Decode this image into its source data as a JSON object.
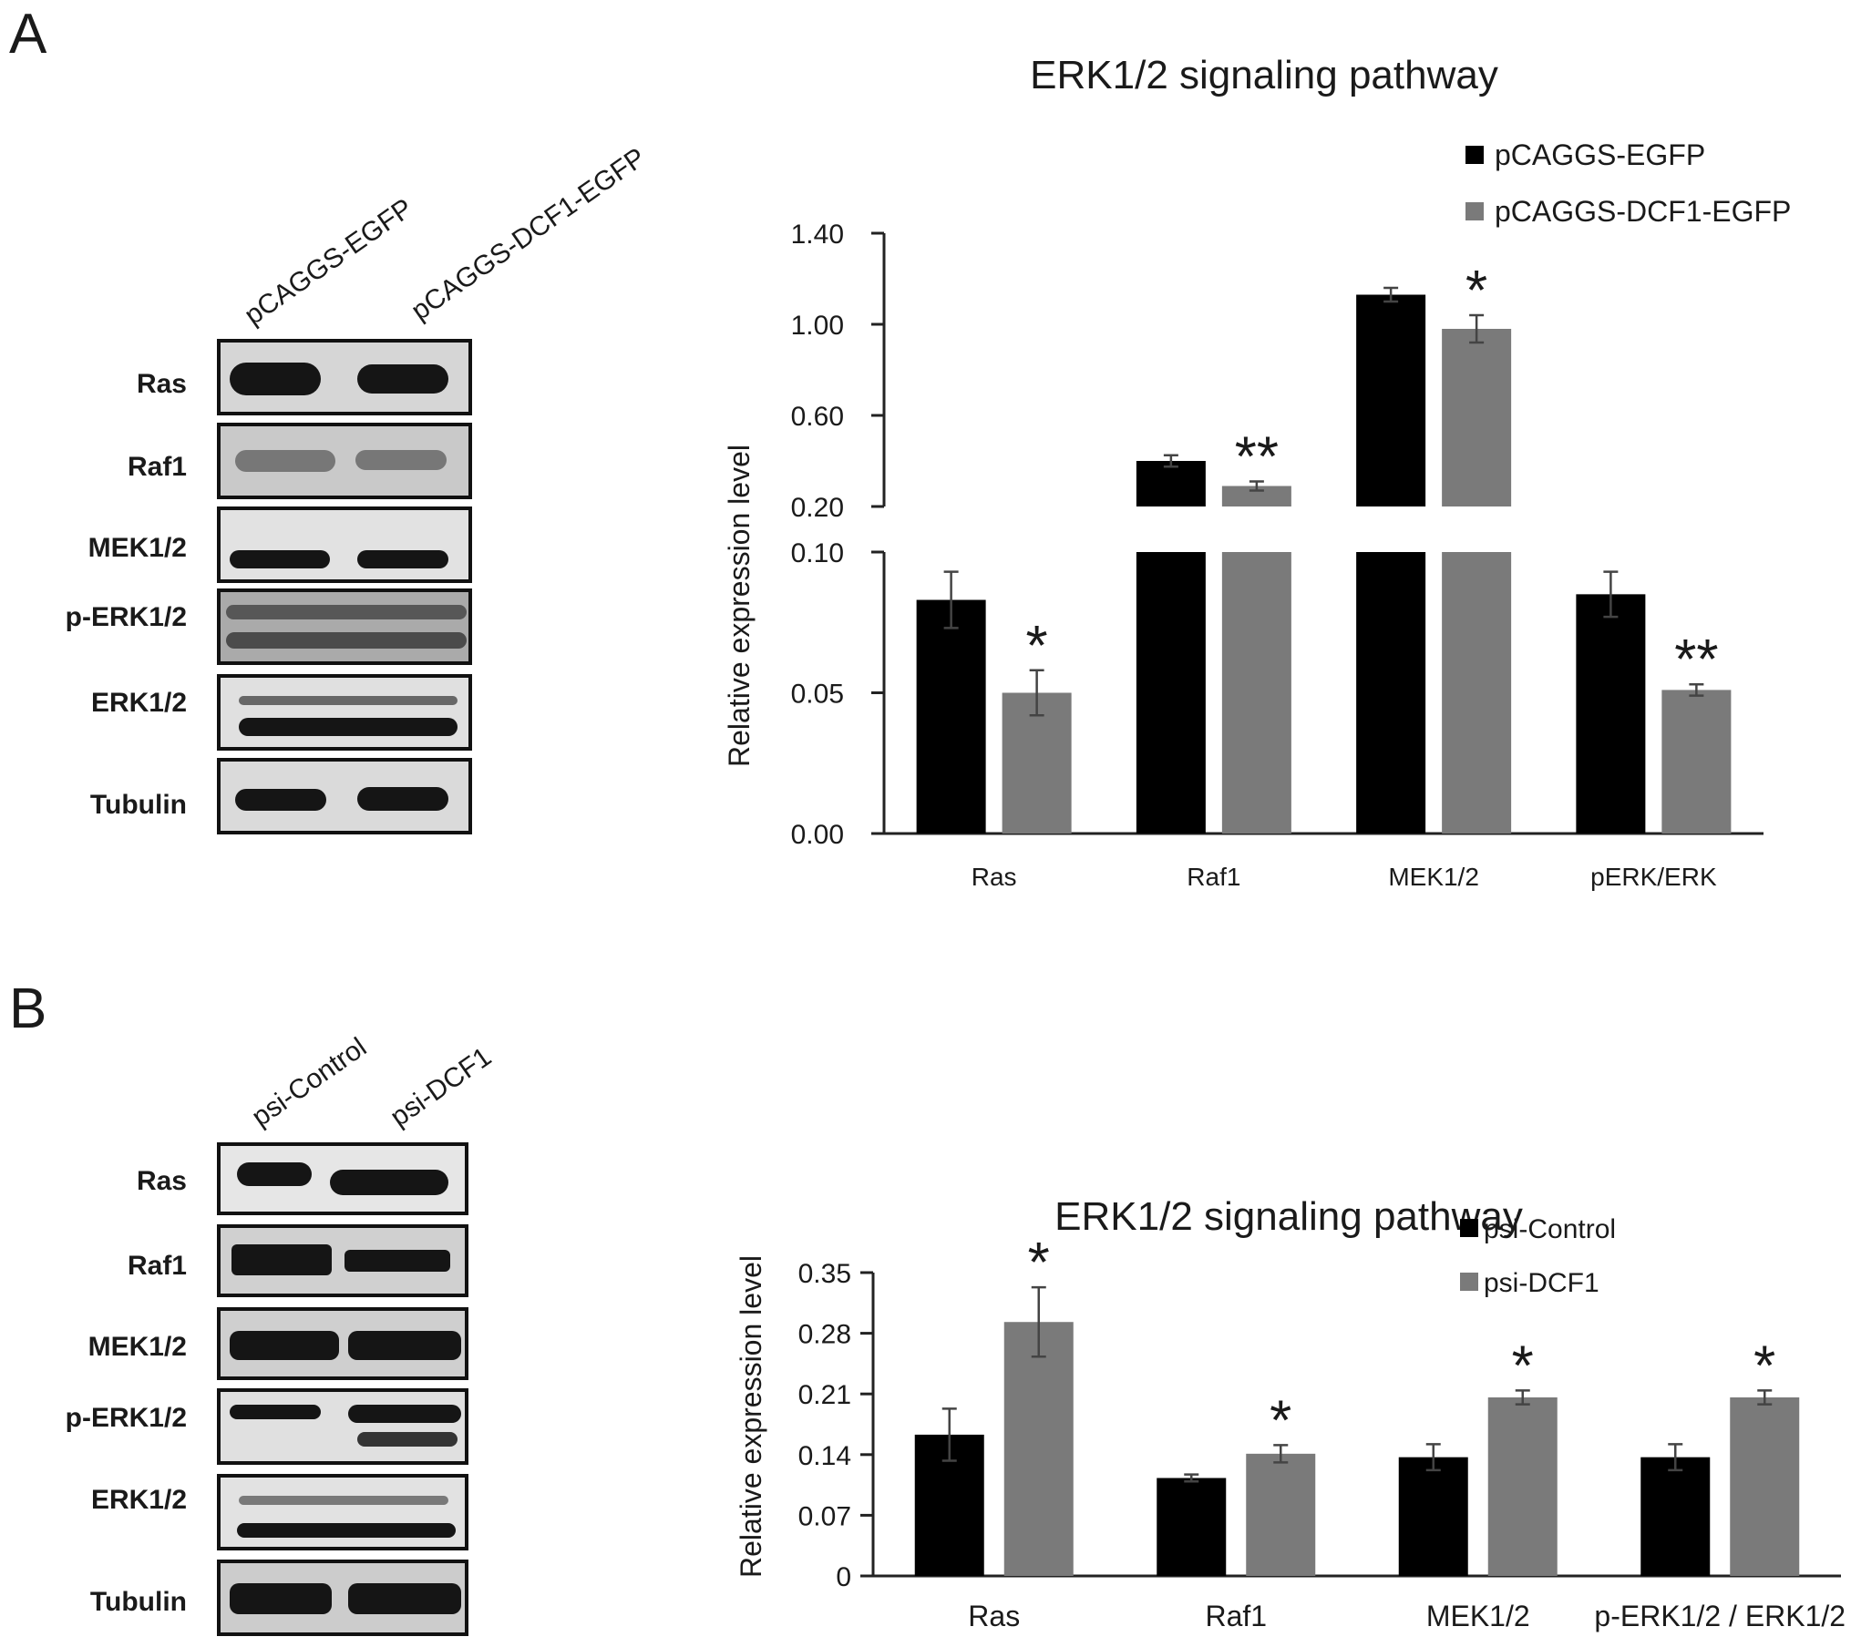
{
  "panelA": {
    "letter": "A",
    "blot": {
      "columns": [
        "pCAGGS-EGFP",
        "pCAGGS-DCF1-EGFP"
      ],
      "rows": [
        "Ras",
        "Raf1",
        "MEK1/2",
        "p-ERK1/2",
        "ERK1/2",
        "Tubulin"
      ]
    }
  },
  "panelB": {
    "letter": "B",
    "blot": {
      "columns": [
        "psi-Control",
        "psi-DCF1"
      ],
      "rows": [
        "Ras",
        "Raf1",
        "MEK1/2",
        "p-ERK1/2",
        "ERK1/2",
        "Tubulin"
      ]
    }
  },
  "chart_data": [
    {
      "type": "bar",
      "title": "ERK1/2 signaling pathway",
      "ylabel": "Relative expression level",
      "xlabel": "",
      "axis_break": true,
      "lower_ylim": [
        0,
        0.1
      ],
      "lower_ticks": [
        "0.00",
        "0.05",
        "0.10"
      ],
      "upper_ylim": [
        0.2,
        1.4
      ],
      "upper_ticks": [
        "0.20",
        "0.60",
        "1.00",
        "1.40"
      ],
      "legend": "top-right",
      "categories": [
        "Ras",
        "Raf1",
        "MEK1/2",
        "pERK/ERK"
      ],
      "series": [
        {
          "name": "pCAGGS-EGFP",
          "color": "#000000",
          "values": [
            0.083,
            0.4,
            1.13,
            0.085
          ],
          "errors": [
            0.01,
            0.025,
            0.03,
            0.008
          ]
        },
        {
          "name": "pCAGGS-DCF1-EGFP",
          "color": "#7a7a7a",
          "values": [
            0.05,
            0.29,
            0.98,
            0.051
          ],
          "errors": [
            0.008,
            0.02,
            0.06,
            0.002
          ]
        }
      ],
      "significance": [
        {
          "category": "Ras",
          "label": "*"
        },
        {
          "category": "Raf1",
          "label": "**"
        },
        {
          "category": "MEK1/2",
          "label": "*"
        },
        {
          "category": "pERK/ERK",
          "label": "**"
        }
      ]
    },
    {
      "type": "bar",
      "title": "ERK1/2 signaling pathway",
      "ylabel": "Relative expression level",
      "xlabel": "",
      "ylim": [
        0,
        0.35
      ],
      "yticks": [
        "0",
        "0.07",
        "0.14",
        "0.21",
        "0.28",
        "0.35"
      ],
      "legend": "top-right",
      "categories": [
        "Ras",
        "Raf1",
        "MEK1/2",
        "p-ERK1/2 / ERK1/2"
      ],
      "series": [
        {
          "name": "psi-Control",
          "color": "#000000",
          "values": [
            0.163,
            0.113,
            0.137,
            0.137
          ],
          "errors": [
            0.03,
            0.004,
            0.015,
            0.015
          ]
        },
        {
          "name": "psi-DCF1",
          "color": "#7a7a7a",
          "values": [
            0.293,
            0.141,
            0.206,
            0.206
          ],
          "errors": [
            0.04,
            0.01,
            0.008,
            0.008
          ]
        }
      ],
      "significance": [
        {
          "category": "Ras",
          "label": "*"
        },
        {
          "category": "Raf1",
          "label": "*"
        },
        {
          "category": "MEK1/2",
          "label": "*"
        },
        {
          "category": "p-ERK1/2 / ERK1/2",
          "label": "*"
        }
      ]
    }
  ]
}
